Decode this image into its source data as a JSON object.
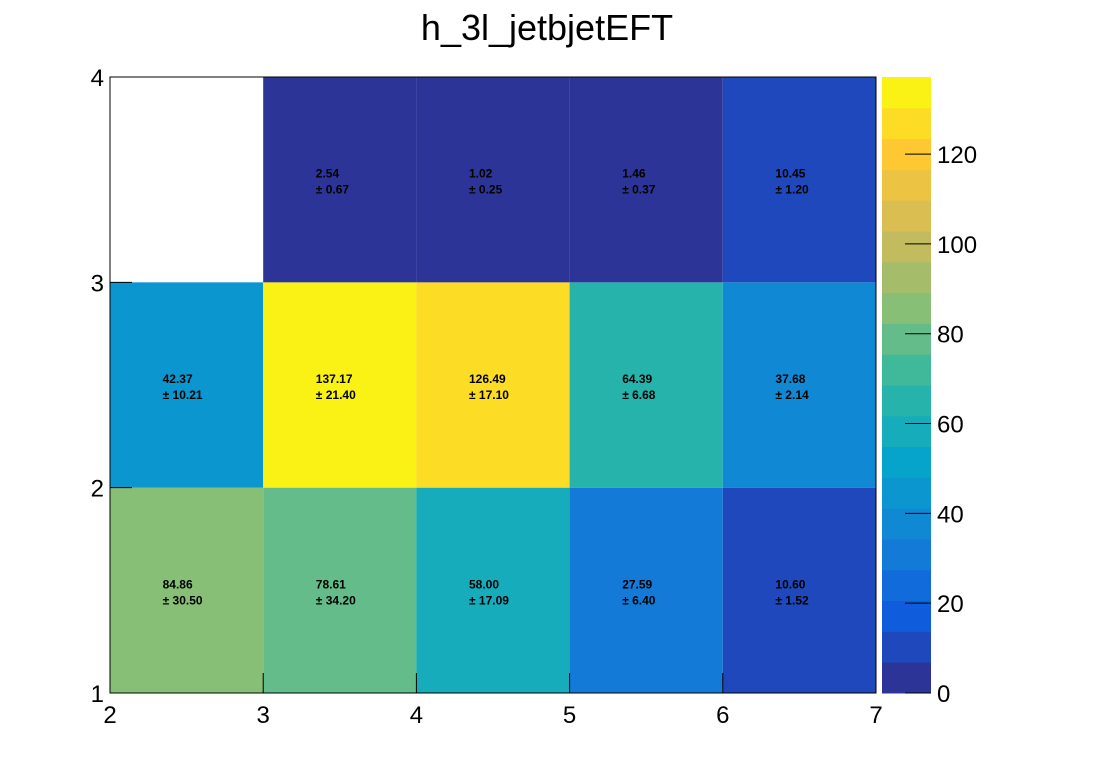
{
  "chart_data": {
    "type": "heatmap",
    "title": "h_3l_jetbjetEFT",
    "xlabel": "",
    "ylabel": "",
    "x_edges": [
      2,
      3,
      4,
      5,
      6,
      7
    ],
    "y_edges": [
      1,
      2,
      3,
      4
    ],
    "xlim": [
      2,
      7
    ],
    "ylim": [
      1,
      4
    ],
    "x_ticks": [
      "2",
      "3",
      "4",
      "5",
      "6",
      "7"
    ],
    "y_ticks": [
      "1",
      "2",
      "3",
      "4"
    ],
    "colorbar": {
      "min": 0,
      "max": 137.17,
      "palette": "kBird",
      "ticks": [
        "0",
        "20",
        "40",
        "60",
        "80",
        "100",
        "120"
      ]
    },
    "grid": false,
    "legend": "none",
    "cells": [
      {
        "row": 0,
        "col": 0,
        "value": 84.86,
        "value_label": "84.86",
        "error_label": "± 30.50"
      },
      {
        "row": 0,
        "col": 1,
        "value": 78.61,
        "value_label": "78.61",
        "error_label": "± 34.20"
      },
      {
        "row": 0,
        "col": 2,
        "value": 58.0,
        "value_label": "58.00",
        "error_label": "± 17.09"
      },
      {
        "row": 0,
        "col": 3,
        "value": 27.59,
        "value_label": "27.59",
        "error_label": "± 6.40"
      },
      {
        "row": 0,
        "col": 4,
        "value": 10.6,
        "value_label": "10.60",
        "error_label": "± 1.52"
      },
      {
        "row": 1,
        "col": 0,
        "value": 42.37,
        "value_label": "42.37",
        "error_label": "± 10.21"
      },
      {
        "row": 1,
        "col": 1,
        "value": 137.17,
        "value_label": "137.17",
        "error_label": "± 21.40"
      },
      {
        "row": 1,
        "col": 2,
        "value": 126.49,
        "value_label": "126.49",
        "error_label": "± 17.10"
      },
      {
        "row": 1,
        "col": 3,
        "value": 64.39,
        "value_label": "64.39",
        "error_label": "± 6.68"
      },
      {
        "row": 1,
        "col": 4,
        "value": 37.68,
        "value_label": "37.68",
        "error_label": "± 2.14"
      },
      {
        "row": 2,
        "col": 1,
        "value": 2.54,
        "value_label": "2.54",
        "error_label": "± 0.67"
      },
      {
        "row": 2,
        "col": 2,
        "value": 1.02,
        "value_label": "1.02",
        "error_label": "± 0.25"
      },
      {
        "row": 2,
        "col": 3,
        "value": 1.46,
        "value_label": "1.46",
        "error_label": "± 0.37"
      },
      {
        "row": 2,
        "col": 4,
        "value": 10.45,
        "value_label": "10.45",
        "error_label": "± 1.20"
      }
    ]
  }
}
